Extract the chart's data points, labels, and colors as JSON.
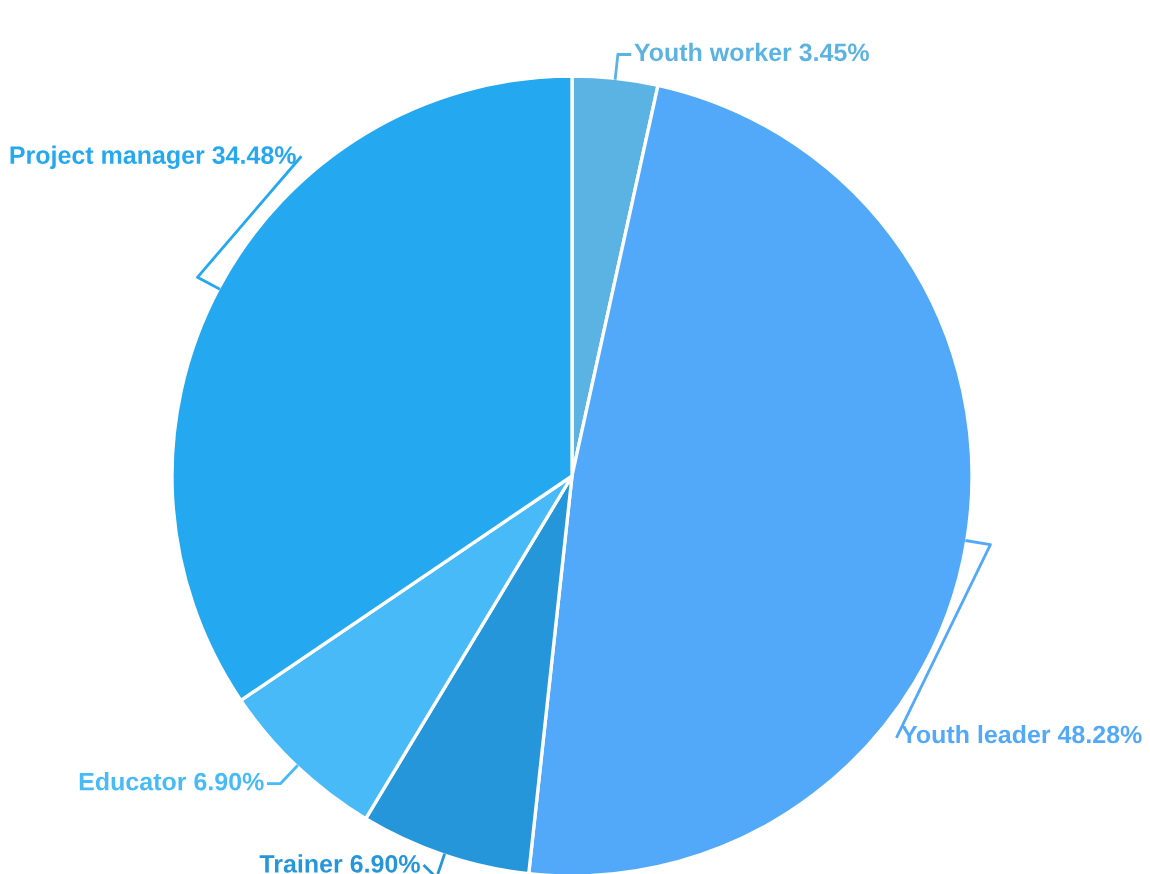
{
  "chart_data": {
    "type": "pie",
    "categories": [
      "Youth worker",
      "Youth leader",
      "Trainer",
      "Educator",
      "Project manager"
    ],
    "values": [
      3.45,
      48.28,
      6.9,
      6.9,
      34.48
    ],
    "value_labels": [
      "3.45%",
      "48.28%",
      "6.90%",
      "6.90%",
      "34.48%"
    ],
    "colors": [
      "#5bb3e3",
      "#53a9f9",
      "#2596d9",
      "#47baf7",
      "#24a8f0"
    ],
    "legend": false
  }
}
